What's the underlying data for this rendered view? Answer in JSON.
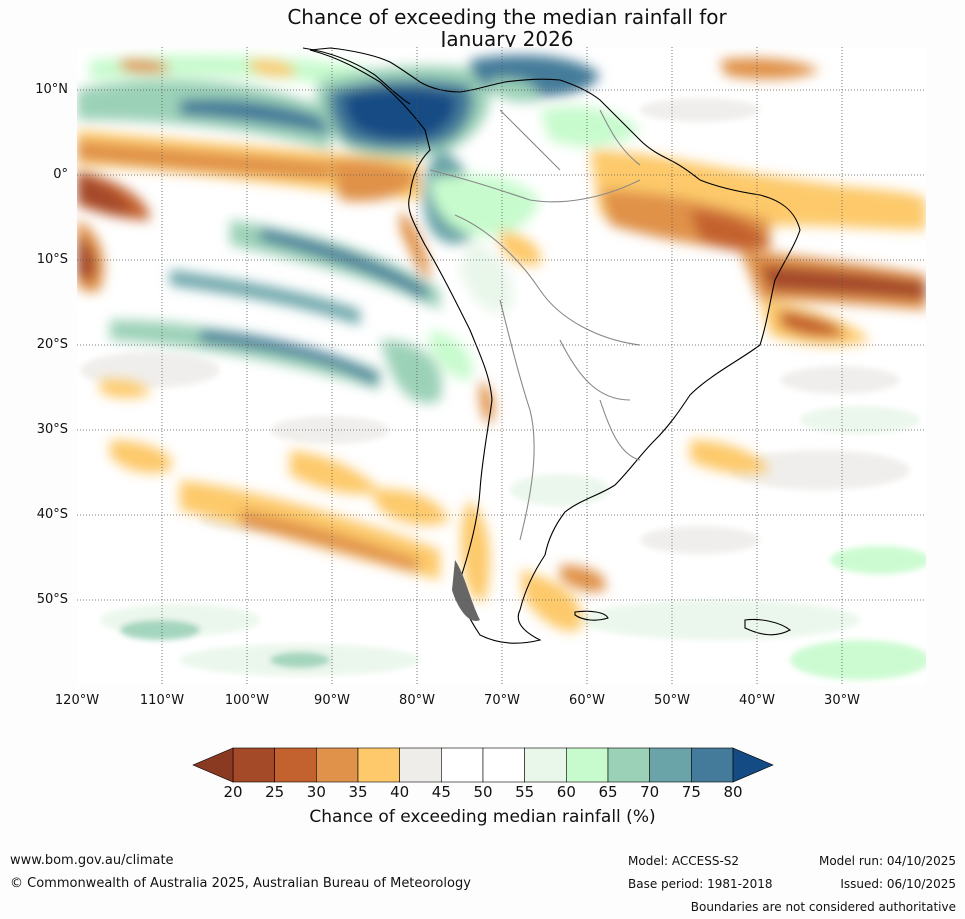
{
  "title": {
    "line1": "Chance of exceeding the median rainfall for",
    "line2": "January 2026"
  },
  "map": {
    "lat_labels": [
      "10°N",
      "0°",
      "10°S",
      "20°S",
      "30°S",
      "40°S",
      "50°S"
    ],
    "lon_labels": [
      "120°W",
      "110°W",
      "100°W",
      "90°W",
      "80°W",
      "70°W",
      "60°W",
      "50°W",
      "40°W",
      "30°W"
    ]
  },
  "colorbar": {
    "ticks": [
      "20",
      "25",
      "30",
      "35",
      "40",
      "45",
      "50",
      "55",
      "60",
      "65",
      "70",
      "75",
      "80"
    ],
    "colors": [
      "#a54a29",
      "#c4622f",
      "#e0924a",
      "#fdc96a",
      "#efedea",
      "#ffffff",
      "#ffffff",
      "#e9f6ea",
      "#c7fbcd",
      "#9bd1b7",
      "#6ba4a8",
      "#447b9a",
      "#154b84"
    ],
    "under_color": "#8b3a22",
    "over_color": "#154b84",
    "label": "Chance of exceeding median rainfall (%)"
  },
  "footer": {
    "url": "www.bom.gov.au/climate",
    "copyright": "© Commonwealth of Australia 2025, Australian Bureau of Meteorology",
    "model": "Model: ACCESS-S2",
    "base_period": "Base period: 1981-2018",
    "model_run": "Model run: 04/10/2025",
    "issued": "Issued: 06/10/2025",
    "disclaimer": "Boundaries are not considered authoritative"
  }
}
